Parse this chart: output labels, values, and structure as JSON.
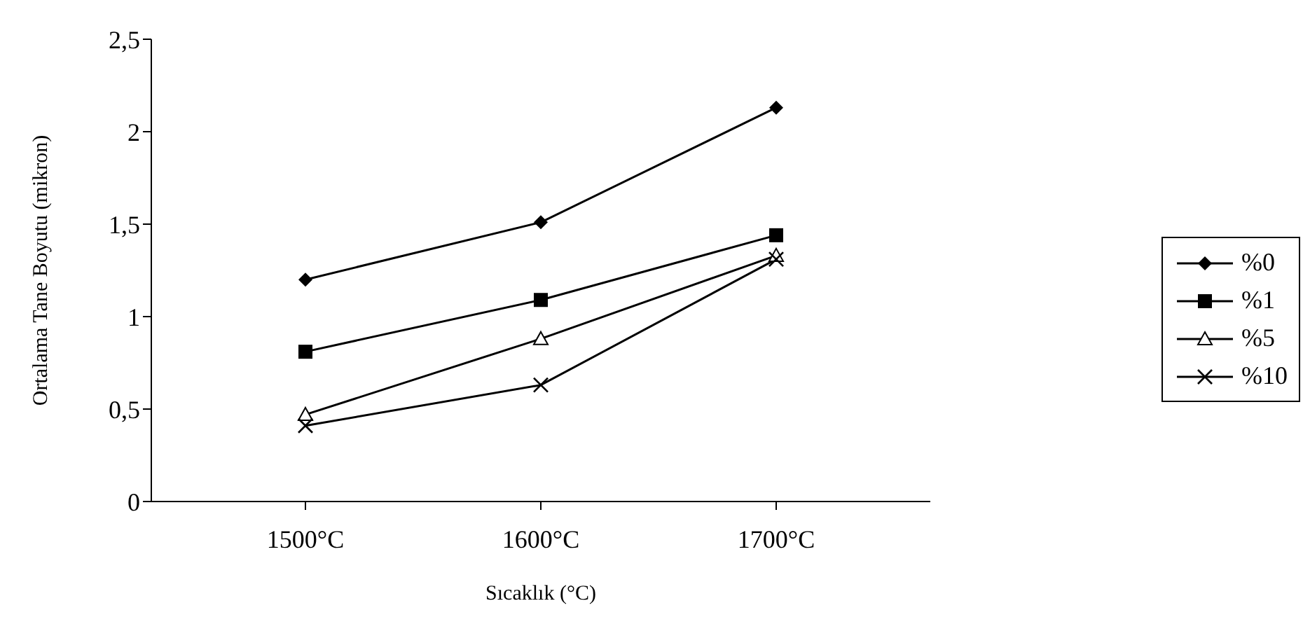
{
  "chart_data": {
    "type": "line",
    "xlabel": "Sıcaklık (°C)",
    "ylabel": "Ortalama Tane Boyutu (mikron)",
    "categories": [
      "1500°C",
      "1600°C",
      "1700°C"
    ],
    "series": [
      {
        "name": "%0",
        "color": "#000000",
        "marker": "diamond",
        "values": [
          1.2,
          1.51,
          2.13
        ]
      },
      {
        "name": "%1",
        "color": "#000000",
        "marker": "square",
        "values": [
          0.81,
          1.09,
          1.44
        ]
      },
      {
        "name": "%5",
        "color": "#000000",
        "marker": "triangle",
        "values": [
          0.47,
          0.88,
          1.33
        ]
      },
      {
        "name": "%10",
        "color": "#000000",
        "marker": "cross",
        "values": [
          0.41,
          0.63,
          1.31
        ]
      }
    ],
    "ylim": [
      0,
      2.5
    ],
    "yticks": [
      {
        "value": 0,
        "label": "0"
      },
      {
        "value": 0.5,
        "label": "0,5"
      },
      {
        "value": 1,
        "label": "1"
      },
      {
        "value": 1.5,
        "label": "1,5"
      },
      {
        "value": 2,
        "label": "2"
      },
      {
        "value": 2.5,
        "label": "2,5"
      }
    ],
    "grid": false,
    "legend": "right",
    "line_style": "solid"
  }
}
